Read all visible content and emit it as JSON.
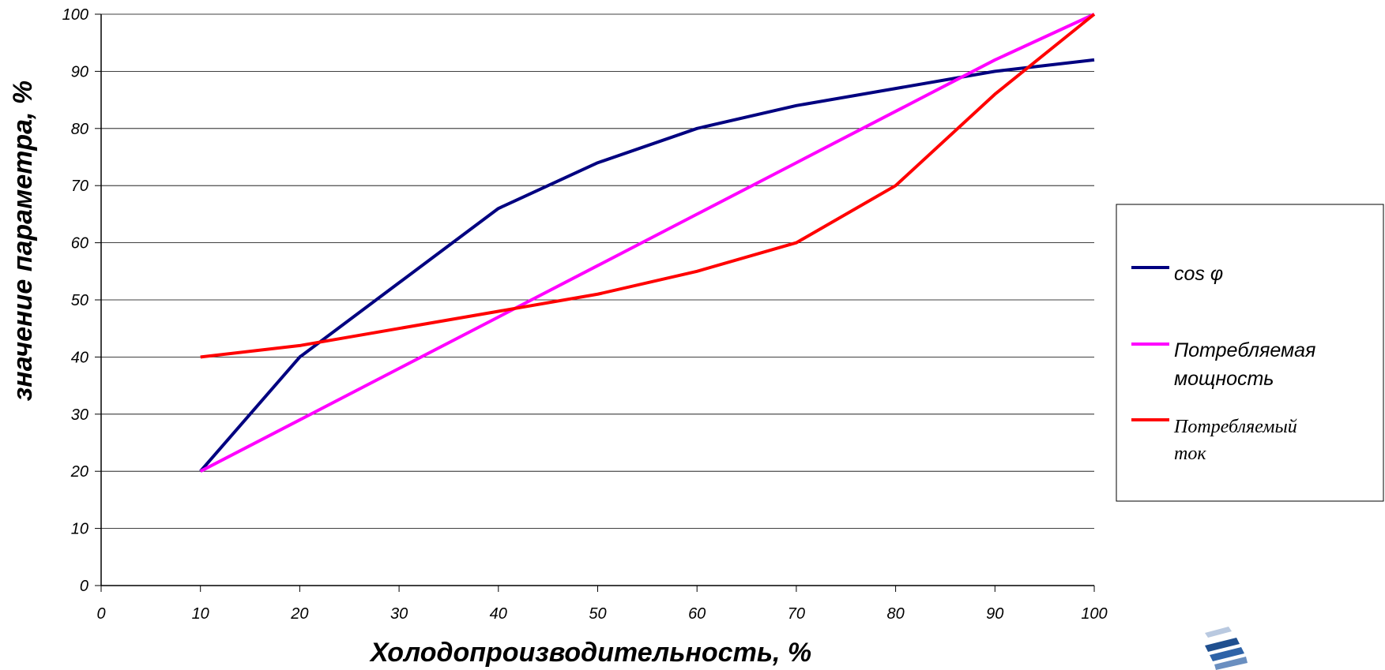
{
  "chart_data": {
    "type": "line",
    "xlabel": "Холодопроизводительность, %",
    "ylabel": "значение параметра, %",
    "xlim": [
      0,
      100
    ],
    "ylim": [
      0,
      100
    ],
    "x_ticks": [
      "0",
      "10",
      "20",
      "30",
      "40",
      "50",
      "60",
      "70",
      "80",
      "90",
      "100"
    ],
    "y_ticks": [
      "0",
      "10",
      "20",
      "30",
      "40",
      "50",
      "60",
      "70",
      "80",
      "90",
      "100"
    ],
    "grid": "horizontal",
    "legend": "right",
    "x": [
      10,
      20,
      30,
      40,
      50,
      60,
      70,
      80,
      90,
      100
    ],
    "series": [
      {
        "name": "cos φ",
        "name_lines": [
          "cos φ"
        ],
        "color": "#000080",
        "values": [
          20,
          40,
          53,
          66,
          74,
          80,
          84,
          87,
          90,
          92
        ]
      },
      {
        "name": "Потребляемая мощность",
        "name_lines": [
          "Потребляемая",
          "мощность"
        ],
        "color": "#ff00ff",
        "values": [
          20,
          29,
          38,
          47,
          56,
          65,
          74,
          83,
          92,
          100
        ]
      },
      {
        "name": "Потребляемый ток",
        "name_lines": [
          "Потребляемый",
          "ток"
        ],
        "color": "#ff0000",
        "values": [
          40,
          42,
          45,
          48,
          51,
          55,
          60,
          70,
          86,
          100
        ]
      }
    ]
  }
}
